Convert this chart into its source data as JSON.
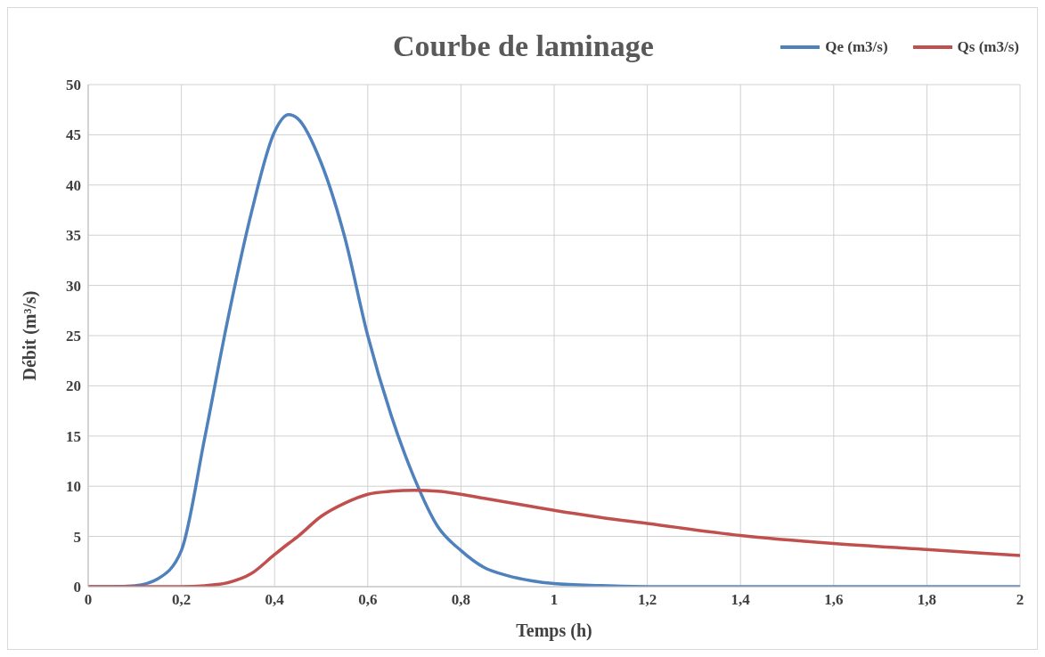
{
  "chart_data": {
    "type": "line",
    "title": "Courbe de laminage",
    "xlabel": "Temps (h)",
    "ylabel": "Débit (m³/s)",
    "x": [
      0,
      0.05,
      0.1,
      0.15,
      0.2,
      0.25,
      0.3,
      0.35,
      0.4,
      0.43,
      0.45,
      0.5,
      0.55,
      0.6,
      0.65,
      0.7,
      0.75,
      0.8,
      0.85,
      0.9,
      0.95,
      1,
      1.1,
      1.2,
      1.4,
      1.6,
      1.8,
      2
    ],
    "series": [
      {
        "name": "Qe (m3/s)",
        "color": "#4f81bd",
        "values": [
          0,
          0,
          0.1,
          0.8,
          3.6,
          14.8,
          26.7,
          37.2,
          45.3,
          47,
          46.6,
          42.2,
          34.9,
          25,
          17.1,
          10.8,
          6,
          3.6,
          1.9,
          1.1,
          0.6,
          0.3,
          0.1,
          0,
          0,
          0,
          0,
          0
        ]
      },
      {
        "name": "Qs (m3/s)",
        "color": "#c0504d",
        "values": [
          0,
          0,
          0,
          0,
          0,
          0.1,
          0.4,
          1.3,
          3.2,
          4.3,
          5,
          7,
          8.3,
          9.2,
          9.5,
          9.6,
          9.5,
          9.2,
          8.8,
          8.4,
          8,
          7.6,
          6.9,
          6.3,
          5.1,
          4.3,
          3.7,
          3.1
        ]
      }
    ],
    "xlim": [
      0,
      2
    ],
    "xticks": [
      0,
      {
        "value": 0.2,
        "label": "0,2"
      },
      {
        "value": 0.4,
        "label": "0,4"
      },
      {
        "value": 0.6,
        "label": "0,6"
      },
      {
        "value": 0.8,
        "label": "0,8"
      },
      1,
      {
        "value": 1.2,
        "label": "1,2"
      },
      {
        "value": 1.4,
        "label": "1,4"
      },
      {
        "value": 1.6,
        "label": "1,6"
      },
      {
        "value": 1.8,
        "label": "1,8"
      },
      2
    ],
    "ylim": [
      0,
      50
    ],
    "yticks": [
      0,
      5,
      10,
      15,
      20,
      25,
      30,
      35,
      40,
      45,
      50
    ],
    "grid": true,
    "legend": "top right",
    "marker": "none",
    "line_style": "solid"
  }
}
